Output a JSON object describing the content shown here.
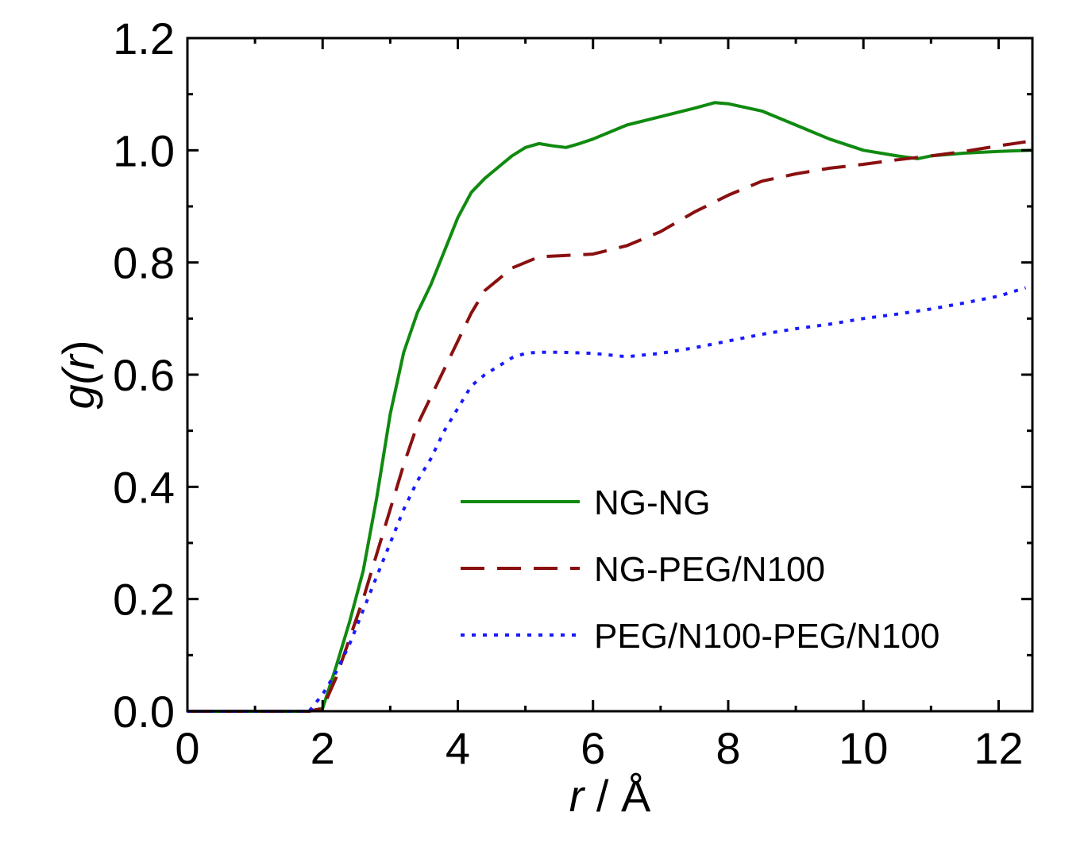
{
  "chart_data": {
    "type": "line",
    "title": "",
    "xlabel_var": "r",
    "xlabel_rest": " / Å",
    "ylabel_var_open": "g(",
    "ylabel_var": "r",
    "ylabel_close": ")",
    "xlim": [
      0,
      12.5
    ],
    "ylim": [
      0,
      1.2
    ],
    "xticks": [
      0,
      2,
      4,
      6,
      8,
      10,
      12
    ],
    "xtick_labels": [
      "0",
      "2",
      "4",
      "6",
      "8",
      "10",
      "12"
    ],
    "yticks": [
      0,
      0.2,
      0.4,
      0.6,
      0.8,
      1.0,
      1.2
    ],
    "ytick_labels": [
      "0.0",
      "0.2",
      "0.4",
      "0.6",
      "0.8",
      "1.0",
      "1.2"
    ],
    "grid": false,
    "legend_position": "center-right",
    "series": [
      {
        "name": "NG-NG",
        "color": "#108a10",
        "style": "solid",
        "x": [
          0,
          1.8,
          2.0,
          2.2,
          2.4,
          2.6,
          2.8,
          3.0,
          3.2,
          3.4,
          3.6,
          3.8,
          4.0,
          4.2,
          4.4,
          4.6,
          4.8,
          5.0,
          5.2,
          5.4,
          5.6,
          5.8,
          6.0,
          6.2,
          6.5,
          7.0,
          7.5,
          7.8,
          8.0,
          8.5,
          9.0,
          9.5,
          10.0,
          10.5,
          10.8,
          11.0,
          11.5,
          12.0,
          12.5
        ],
        "y": [
          0,
          0,
          0.005,
          0.08,
          0.16,
          0.25,
          0.38,
          0.53,
          0.64,
          0.71,
          0.76,
          0.82,
          0.88,
          0.925,
          0.95,
          0.97,
          0.99,
          1.005,
          1.012,
          1.008,
          1.005,
          1.012,
          1.02,
          1.03,
          1.045,
          1.06,
          1.075,
          1.085,
          1.083,
          1.07,
          1.045,
          1.02,
          1.0,
          0.99,
          0.985,
          0.99,
          0.995,
          0.998,
          1.0
        ]
      },
      {
        "name": "NG-PEG/N100",
        "color": "#8a1010",
        "style": "dashed",
        "x": [
          0,
          1.8,
          2.0,
          2.2,
          2.4,
          2.6,
          2.8,
          3.0,
          3.2,
          3.4,
          3.6,
          3.8,
          4.0,
          4.2,
          4.4,
          4.6,
          4.8,
          5.0,
          5.2,
          5.5,
          6.0,
          6.5,
          7.0,
          7.5,
          8.0,
          8.5,
          9.0,
          9.5,
          10.0,
          10.5,
          11.0,
          11.5,
          12.0,
          12.4
        ],
        "y": [
          0,
          0,
          0.005,
          0.06,
          0.13,
          0.2,
          0.28,
          0.36,
          0.44,
          0.51,
          0.56,
          0.61,
          0.66,
          0.71,
          0.75,
          0.77,
          0.79,
          0.8,
          0.81,
          0.812,
          0.815,
          0.83,
          0.855,
          0.89,
          0.92,
          0.945,
          0.958,
          0.968,
          0.975,
          0.983,
          0.99,
          0.998,
          1.008,
          1.015
        ]
      },
      {
        "name": "PEG/N100-PEG/N100",
        "color": "#1a1aff",
        "style": "dotted",
        "x": [
          0,
          1.8,
          2.0,
          2.2,
          2.4,
          2.6,
          2.8,
          3.0,
          3.2,
          3.4,
          3.6,
          3.8,
          4.0,
          4.2,
          4.4,
          4.6,
          4.8,
          5.0,
          5.2,
          5.5,
          6.0,
          6.5,
          7.0,
          7.5,
          8.0,
          8.5,
          9.0,
          9.5,
          10.0,
          10.5,
          11.0,
          11.5,
          12.0,
          12.4
        ],
        "y": [
          0,
          0,
          0.03,
          0.07,
          0.12,
          0.18,
          0.24,
          0.3,
          0.36,
          0.41,
          0.45,
          0.5,
          0.54,
          0.58,
          0.6,
          0.615,
          0.63,
          0.638,
          0.64,
          0.64,
          0.638,
          0.632,
          0.638,
          0.648,
          0.66,
          0.672,
          0.682,
          0.69,
          0.7,
          0.708,
          0.717,
          0.728,
          0.74,
          0.755
        ]
      }
    ]
  }
}
